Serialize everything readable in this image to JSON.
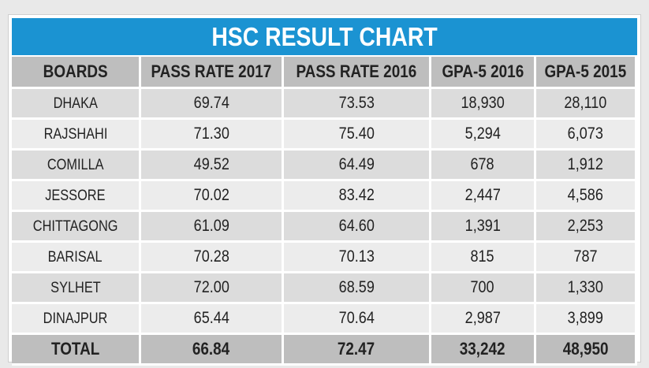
{
  "chart_data": {
    "type": "table",
    "title": "HSC RESULT CHART",
    "columns": [
      "BOARDS",
      "PASS RATE 2017",
      "PASS RATE 2016",
      "GPA-5 2016",
      "GPA-5 2015"
    ],
    "rows": [
      [
        "DHAKA",
        "69.74",
        "73.53",
        "18,930",
        "28,110"
      ],
      [
        "RAJSHAHI",
        "71.30",
        "75.40",
        "5,294",
        "6,073"
      ],
      [
        "COMILLA",
        "49.52",
        "64.49",
        "678",
        "1,912"
      ],
      [
        "JESSORE",
        "70.02",
        "83.42",
        "2,447",
        "4,586"
      ],
      [
        "CHITTAGONG",
        "61.09",
        "64.60",
        "1,391",
        "2,253"
      ],
      [
        "BARISAL",
        "70.28",
        "70.13",
        "815",
        "787"
      ],
      [
        "SYLHET",
        "72.00",
        "68.59",
        "700",
        "1,330"
      ],
      [
        "DINAJPUR",
        "65.44",
        "70.64",
        "2,987",
        "3,899"
      ]
    ],
    "total": [
      "TOTAL",
      "66.84",
      "72.47",
      "33,242",
      "48,950"
    ]
  },
  "colors": {
    "title_bg": "#1b93d2",
    "header_bg": "#bebebe",
    "row_dark": "#dcdcdc",
    "row_light": "#ececec"
  }
}
